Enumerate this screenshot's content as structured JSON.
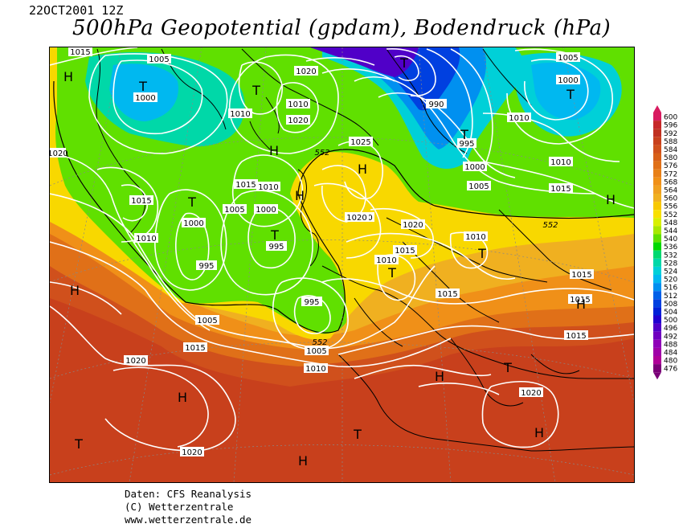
{
  "header": {
    "datestamp": "22OCT2001 12Z",
    "title": "500hPa Geopotential (gpdam), Bodendruck (hPa)"
  },
  "legend": {
    "levels": [
      "600",
      "596",
      "592",
      "588",
      "584",
      "580",
      "576",
      "572",
      "568",
      "564",
      "560",
      "556",
      "552",
      "548",
      "544",
      "540",
      "536",
      "532",
      "528",
      "524",
      "520",
      "516",
      "512",
      "508",
      "504",
      "500",
      "496",
      "492",
      "488",
      "484",
      "480",
      "476"
    ],
    "colors": [
      "#d81b60",
      "#c62828",
      "#c03020",
      "#c8401c",
      "#d0501c",
      "#d86018",
      "#e07018",
      "#e88018",
      "#f09018",
      "#f0a020",
      "#f0b020",
      "#f8c800",
      "#f8e000",
      "#d8f000",
      "#a8e800",
      "#60e000",
      "#00d800",
      "#00d870",
      "#00d8a8",
      "#00d0d8",
      "#00b8f0",
      "#0090f0",
      "#0060e8",
      "#0040e0",
      "#0020d8",
      "#2000d0",
      "#5000c8",
      "#7000c0",
      "#9000b8",
      "#a000a8",
      "#b00098",
      "#7a0078"
    ]
  },
  "map": {
    "pressure_labels": [
      "1015",
      "1005",
      "1020",
      "1000",
      "1010",
      "1020",
      "1010",
      "990",
      "995",
      "1000",
      "1005",
      "1010",
      "1015",
      "1000",
      "1005",
      "1010",
      "1015",
      "1010",
      "1005",
      "1000",
      "995",
      "1010",
      "1025",
      "1020",
      "1020",
      "1015",
      "1010",
      "1010",
      "1015",
      "995",
      "1000",
      "995",
      "1005",
      "1015",
      "1015",
      "1015",
      "1005",
      "1020",
      "1010",
      "1020",
      "1015",
      "1015",
      "1020",
      "1020",
      "1020"
    ],
    "contour_552_label": "552",
    "markers": [
      {
        "letter": "H",
        "kind": "high"
      },
      {
        "letter": "T",
        "kind": "low"
      },
      {
        "letter": "T",
        "kind": "low"
      },
      {
        "letter": "T",
        "kind": "low"
      },
      {
        "letter": "T",
        "kind": "low"
      },
      {
        "letter": "H",
        "kind": "high"
      },
      {
        "letter": "T",
        "kind": "low"
      },
      {
        "letter": "H",
        "kind": "high"
      },
      {
        "letter": "T",
        "kind": "low"
      },
      {
        "letter": "T",
        "kind": "low"
      },
      {
        "letter": "H",
        "kind": "high"
      },
      {
        "letter": "T",
        "kind": "low"
      },
      {
        "letter": "H",
        "kind": "high"
      },
      {
        "letter": "H",
        "kind": "high"
      },
      {
        "letter": "T",
        "kind": "low"
      },
      {
        "letter": "T",
        "kind": "low"
      },
      {
        "letter": "H",
        "kind": "high"
      },
      {
        "letter": "H",
        "kind": "high"
      },
      {
        "letter": "T",
        "kind": "low"
      },
      {
        "letter": "T",
        "kind": "low"
      },
      {
        "letter": "H",
        "kind": "high"
      },
      {
        "letter": "H",
        "kind": "high"
      },
      {
        "letter": "H",
        "kind": "high"
      }
    ]
  },
  "credits": {
    "line1": "Daten: CFS Reanalysis",
    "line2": "(C) Wetterzentrale",
    "line3": "www.wetterzentrale.de"
  }
}
